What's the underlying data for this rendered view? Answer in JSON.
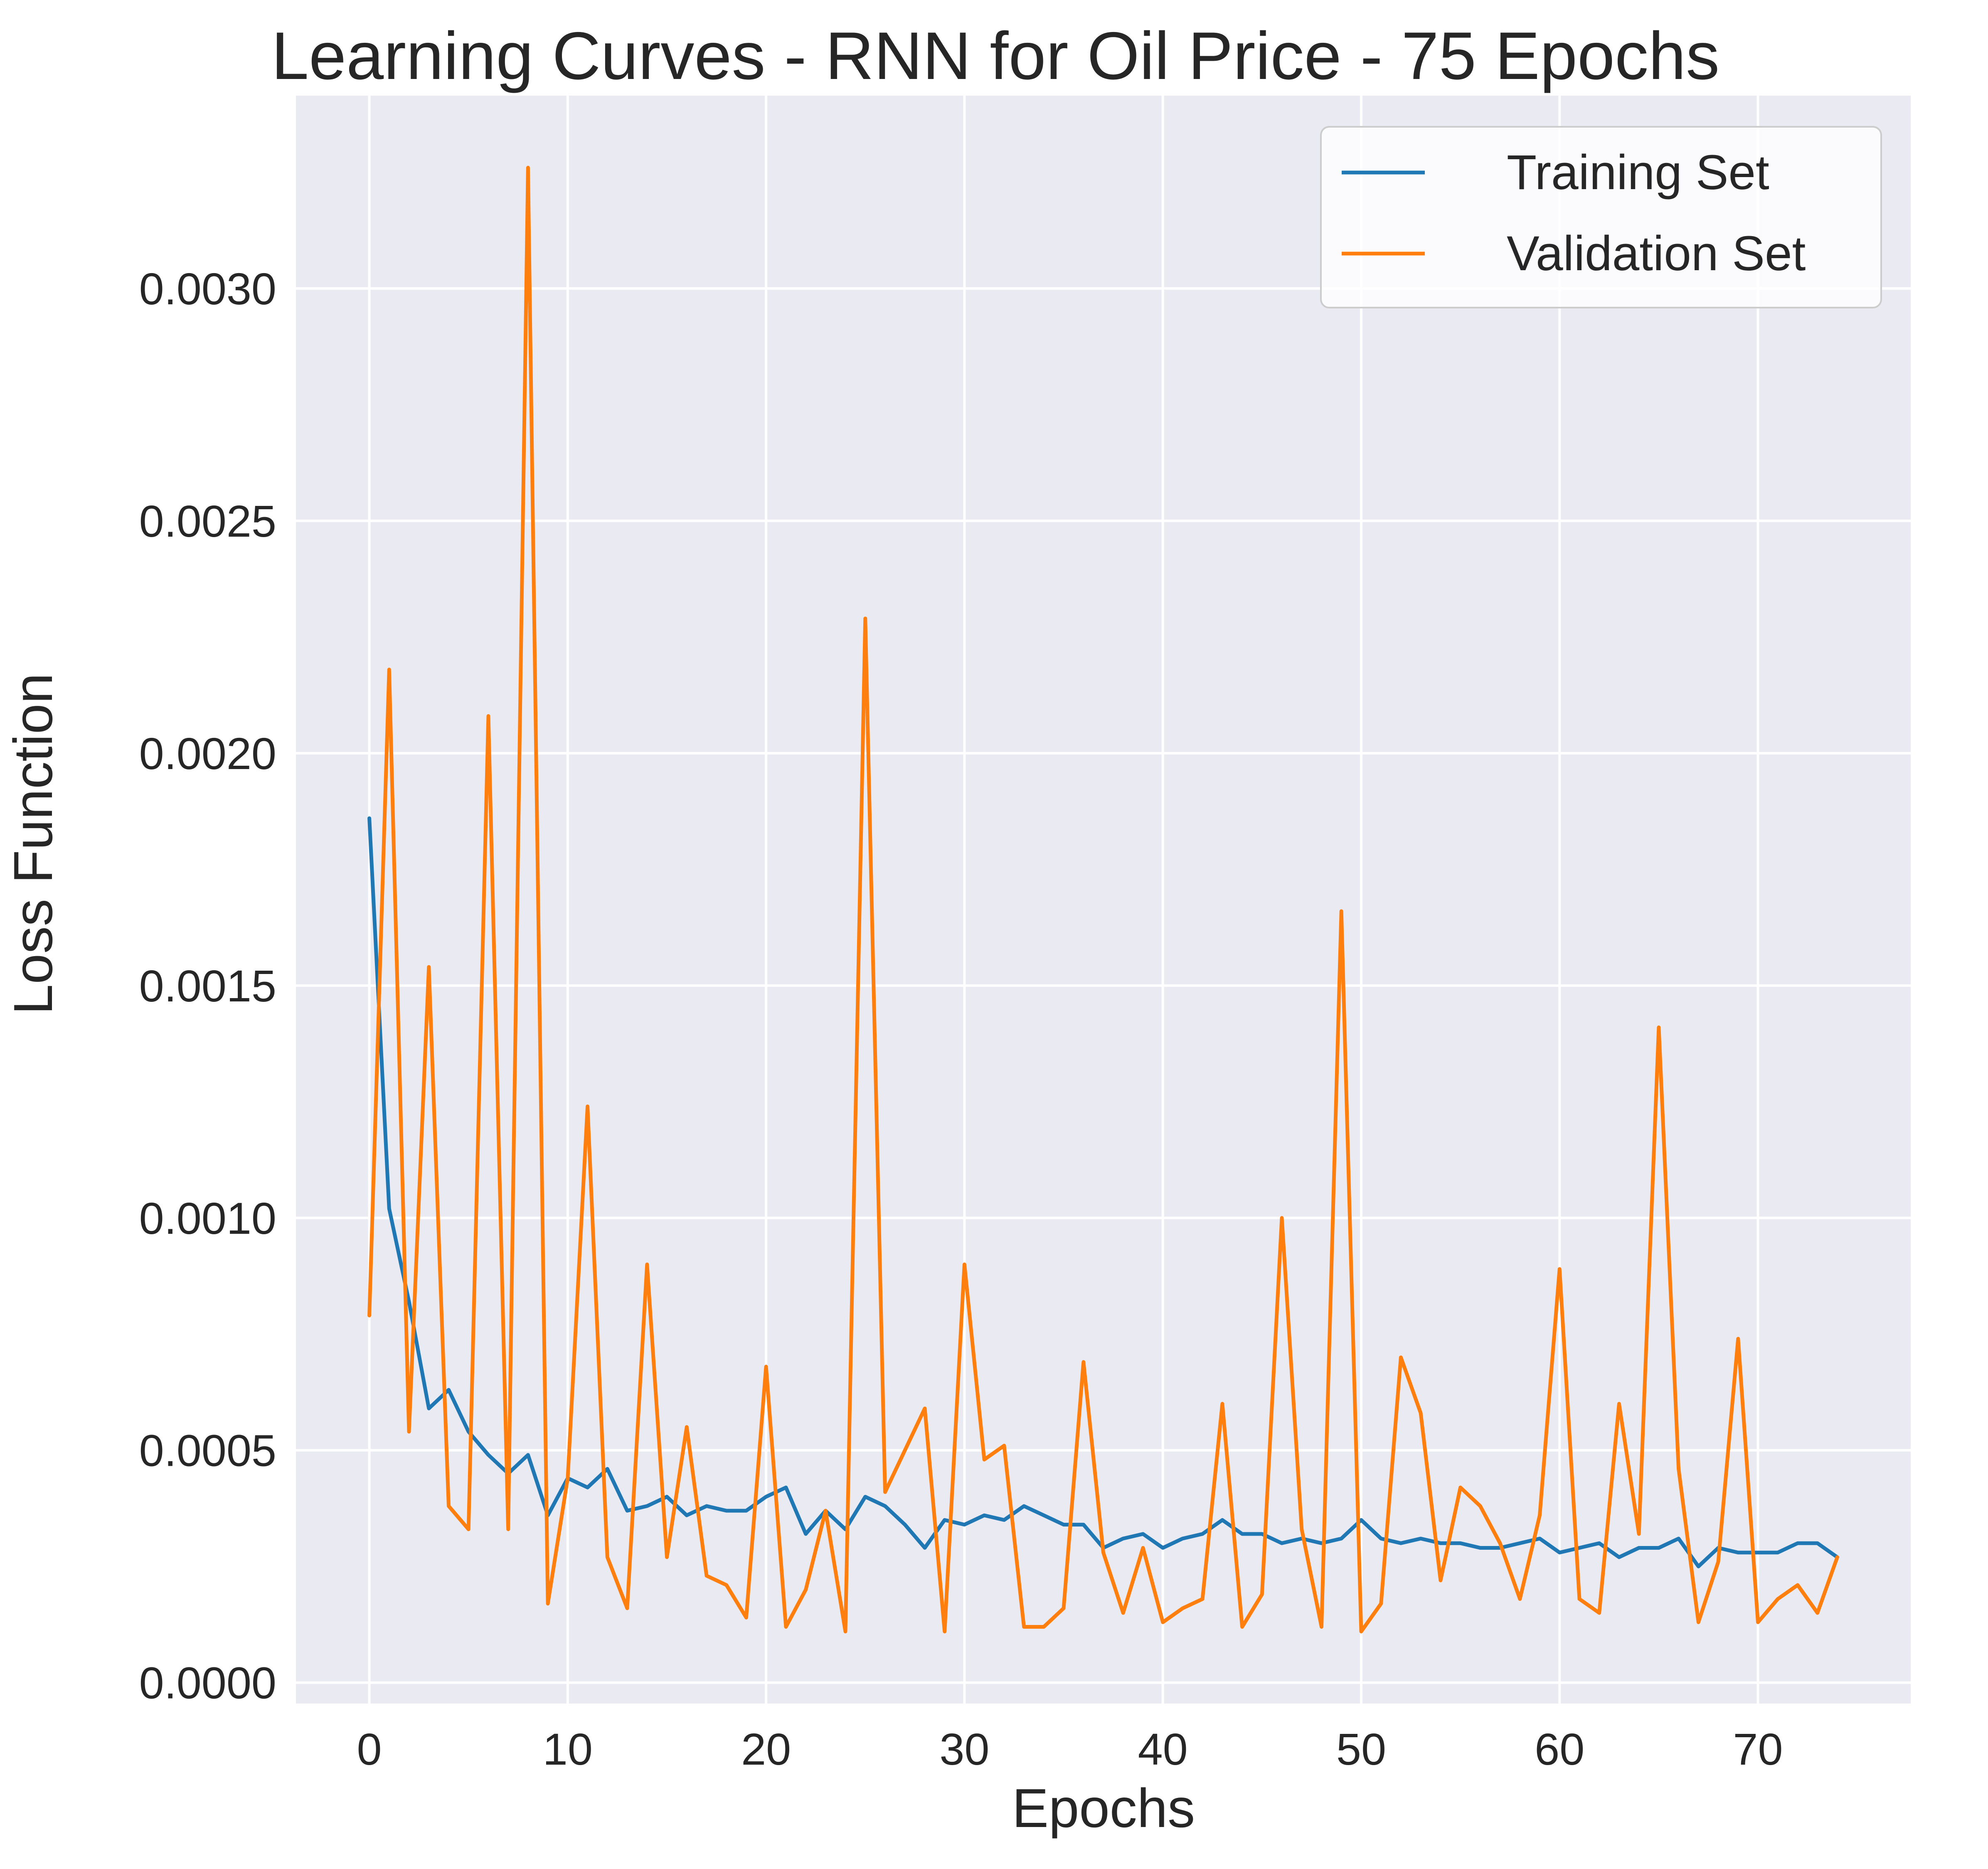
{
  "chart_data": {
    "type": "line",
    "title": "Learning Curves - RNN for Oil Price - 75 Epochs",
    "xlabel": "Epochs",
    "ylabel": "Loss Function",
    "xlim": [
      -3.7,
      77.7
    ],
    "ylim": [
      -4.5e-05,
      0.003415
    ],
    "x_ticks": [
      0,
      10,
      20,
      30,
      40,
      50,
      60,
      70
    ],
    "x_tick_labels": [
      "0",
      "10",
      "20",
      "30",
      "40",
      "50",
      "60",
      "70"
    ],
    "y_ticks": [
      0.0,
      0.0005,
      0.001,
      0.0015,
      0.002,
      0.0025,
      0.003
    ],
    "y_tick_labels": [
      "0.0000",
      "0.0005",
      "0.0010",
      "0.0015",
      "0.0020",
      "0.0025",
      "0.0030"
    ],
    "grid": true,
    "legend_position": "top-right",
    "background": "#eaeaf2",
    "x": [
      0,
      1,
      2,
      3,
      4,
      5,
      6,
      7,
      8,
      9,
      10,
      11,
      12,
      13,
      14,
      15,
      16,
      17,
      18,
      19,
      20,
      21,
      22,
      23,
      24,
      25,
      26,
      27,
      28,
      29,
      30,
      31,
      32,
      33,
      34,
      35,
      36,
      37,
      38,
      39,
      40,
      41,
      42,
      43,
      44,
      45,
      46,
      47,
      48,
      49,
      50,
      51,
      52,
      53,
      54,
      55,
      56,
      57,
      58,
      59,
      60,
      61,
      62,
      63,
      64,
      65,
      66,
      67,
      68,
      69,
      70,
      71,
      72,
      73,
      74
    ],
    "series": [
      {
        "name": "Training Set",
        "color": "#1f77b4",
        "values": [
          0.00186,
          0.00102,
          0.00082,
          0.00059,
          0.00063,
          0.00054,
          0.00049,
          0.00045,
          0.00049,
          0.00036,
          0.00044,
          0.00042,
          0.00046,
          0.00037,
          0.00038,
          0.0004,
          0.00036,
          0.00038,
          0.00037,
          0.00037,
          0.0004,
          0.00042,
          0.00032,
          0.00037,
          0.00033,
          0.0004,
          0.00038,
          0.00034,
          0.00029,
          0.00035,
          0.00034,
          0.00036,
          0.00035,
          0.00038,
          0.00036,
          0.00034,
          0.00034,
          0.00029,
          0.00031,
          0.00032,
          0.00029,
          0.00031,
          0.00032,
          0.00035,
          0.00032,
          0.00032,
          0.0003,
          0.00031,
          0.0003,
          0.00031,
          0.00035,
          0.00031,
          0.0003,
          0.00031,
          0.0003,
          0.0003,
          0.00029,
          0.00029,
          0.0003,
          0.00031,
          0.00028,
          0.00029,
          0.0003,
          0.00027,
          0.00029,
          0.00029,
          0.00031,
          0.00025,
          0.00029,
          0.00028,
          0.00028,
          0.00028,
          0.0003,
          0.0003,
          0.00027
        ]
      },
      {
        "name": "Validation Set",
        "color": "#ff7f0e",
        "values": [
          0.00079,
          0.00218,
          0.00054,
          0.00154,
          0.00038,
          0.00033,
          0.00208,
          0.00033,
          0.00326,
          0.00017,
          0.00044,
          0.00124,
          0.00027,
          0.00016,
          0.0009,
          0.00027,
          0.00055,
          0.00023,
          0.00021,
          0.00014,
          0.00068,
          0.00012,
          0.0002,
          0.00037,
          0.00011,
          0.00229,
          0.00041,
          0.0005,
          0.00059,
          0.00011,
          0.0009,
          0.00048,
          0.00051,
          0.00012,
          0.00012,
          0.00016,
          0.00069,
          0.00028,
          0.00015,
          0.00029,
          0.00013,
          0.00016,
          0.00018,
          0.0006,
          0.00012,
          0.00019,
          0.001,
          0.00033,
          0.00012,
          0.00166,
          0.00011,
          0.00017,
          0.0007,
          0.00058,
          0.00022,
          0.00042,
          0.00038,
          0.0003,
          0.00018,
          0.00036,
          0.00089,
          0.00018,
          0.00015,
          0.0006,
          0.00032,
          0.00141,
          0.00046,
          0.00013,
          0.00026,
          0.00074,
          0.00013,
          0.00018,
          0.00021,
          0.00015,
          0.00027
        ]
      }
    ]
  }
}
